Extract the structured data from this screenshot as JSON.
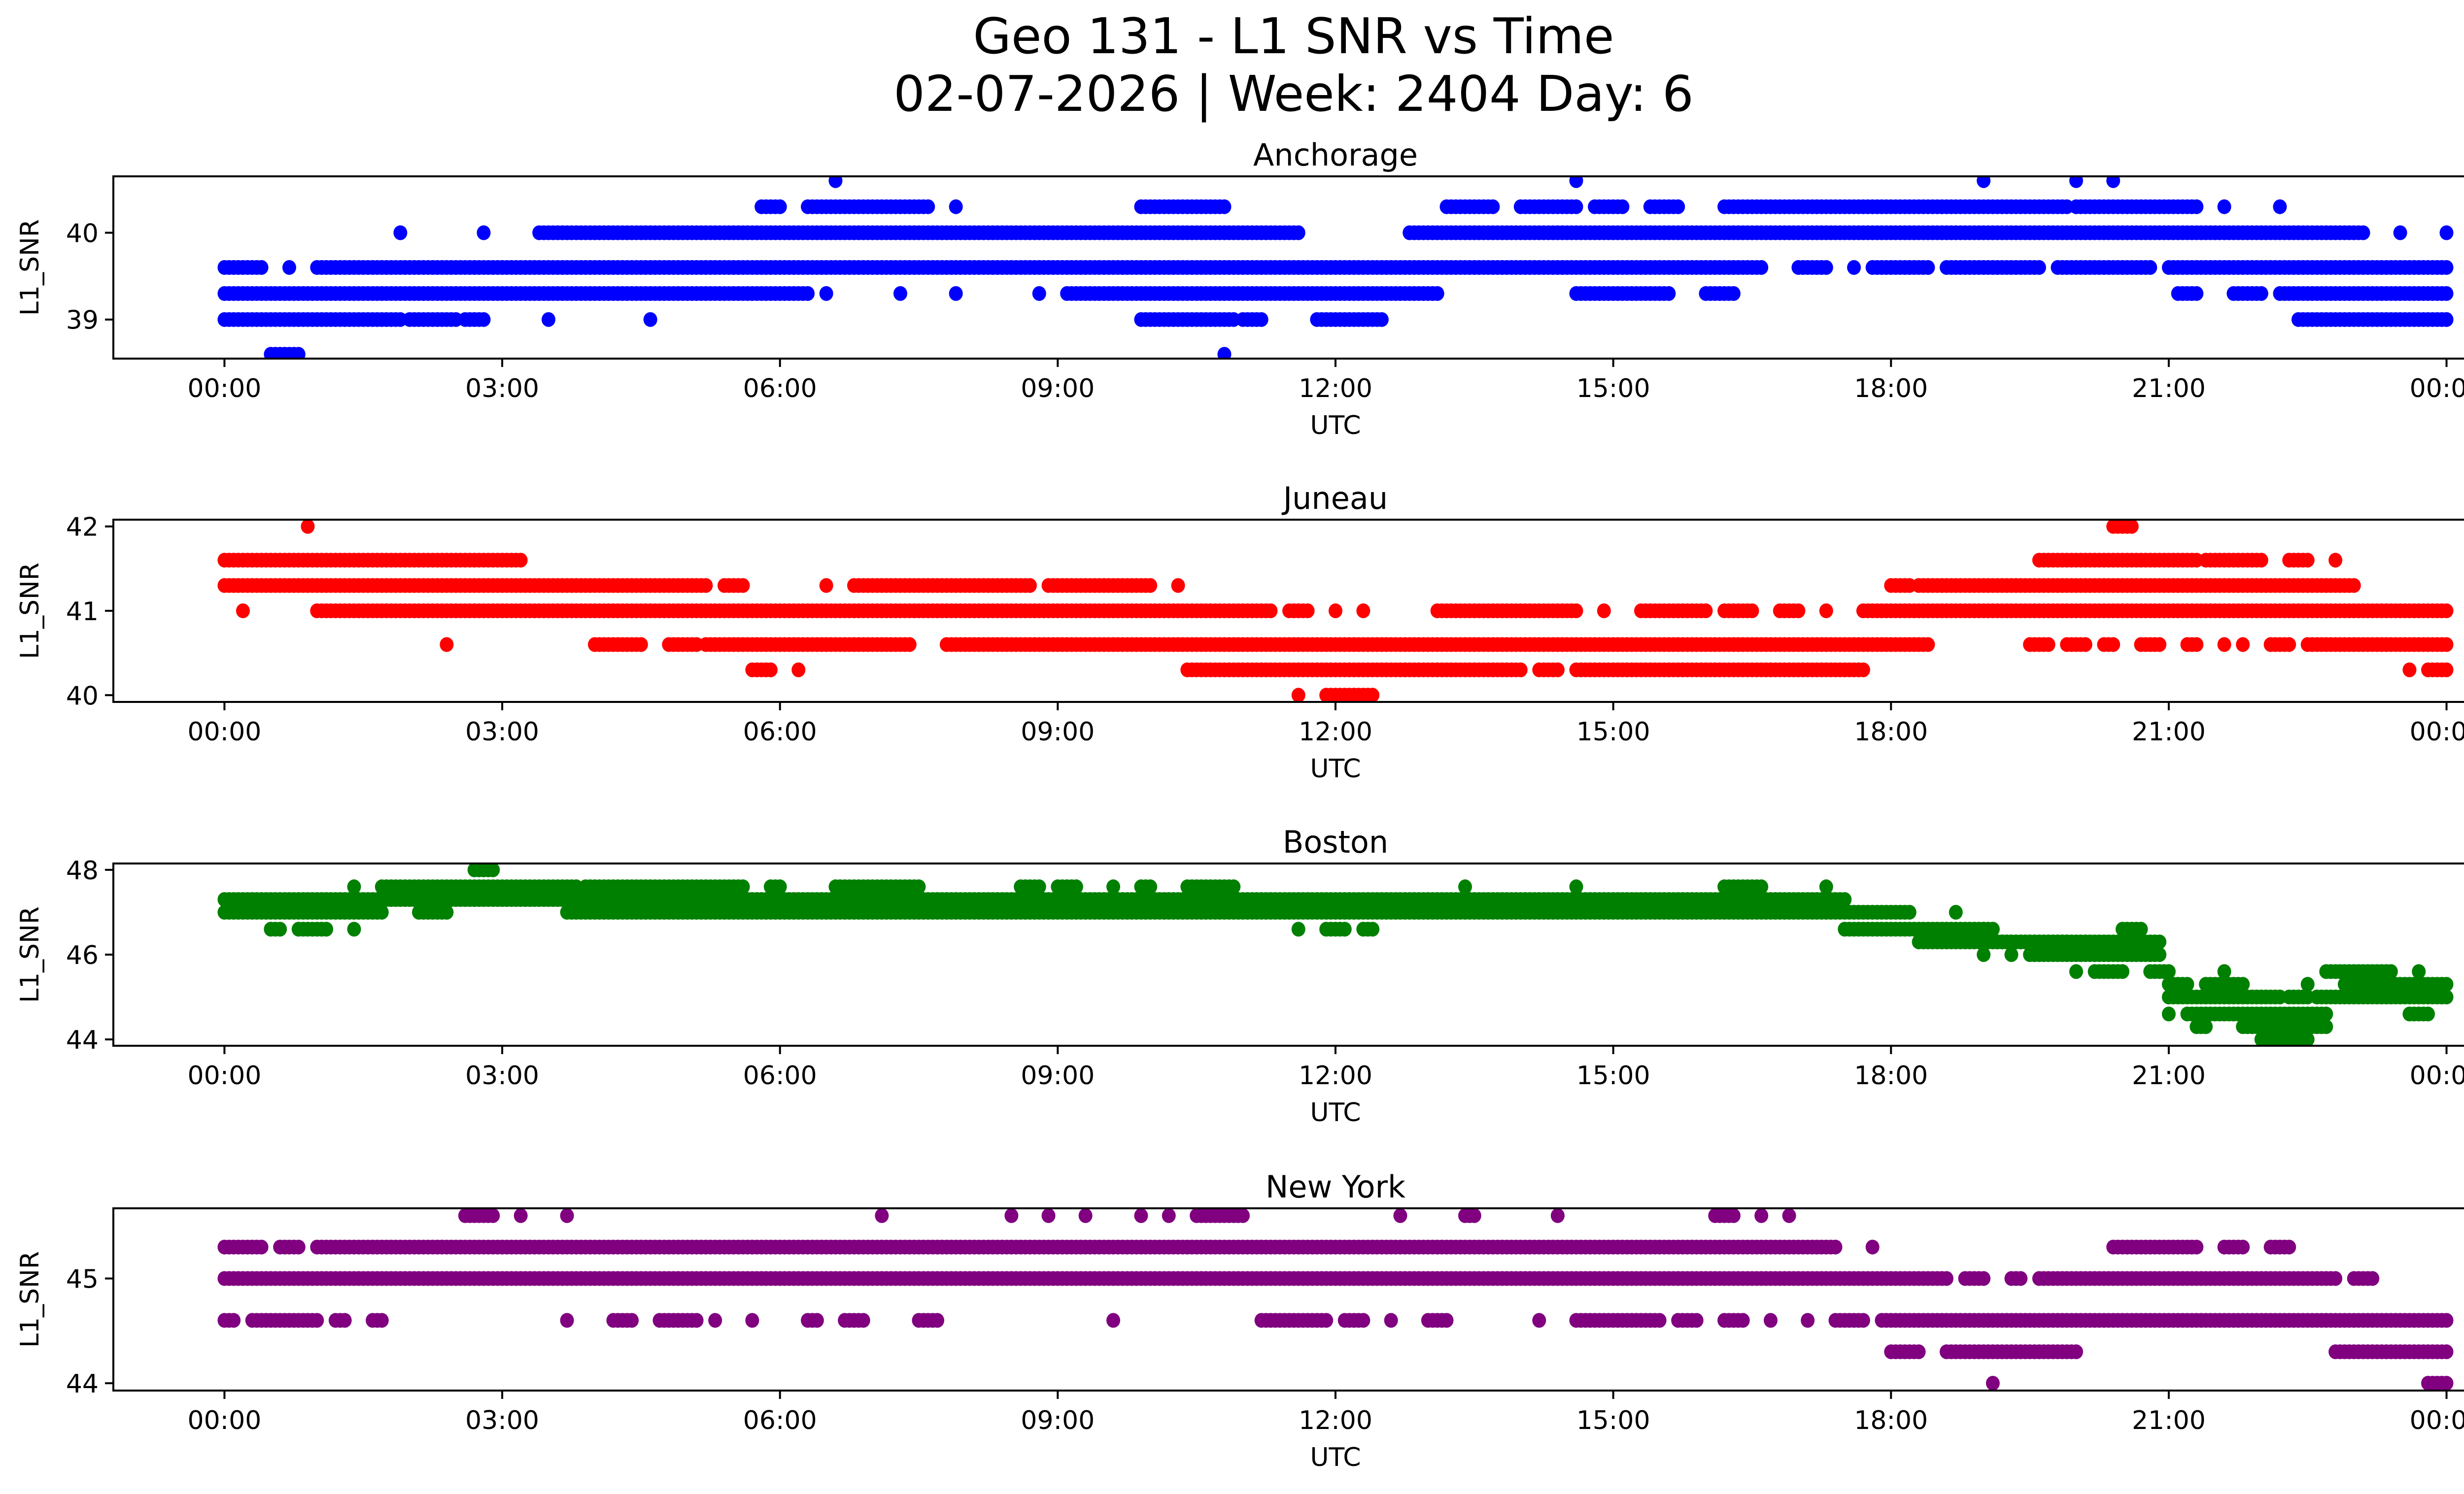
{
  "chart_data": {
    "type": "scatter",
    "title": "Geo 131 - L1 SNR vs Time",
    "subtitle": "02-07-2026 | Week: 2404 Day: 6",
    "x_tick_labels": [
      "00:00",
      "03:00",
      "06:00",
      "09:00",
      "12:00",
      "15:00",
      "18:00",
      "21:00",
      "00:00"
    ],
    "x_tick_hours": [
      0,
      3,
      6,
      9,
      12,
      15,
      18,
      21,
      24
    ],
    "xlim_hours": [
      -1.2,
      25.2
    ],
    "point_step_hours": 0.05,
    "panels": [
      {
        "title": "Anchorage",
        "xlabel": "UTC",
        "ylabel": "L1_SNR",
        "color": "#0000ff",
        "ylim": [
          38.55,
          40.65
        ],
        "yticks": [
          39,
          40
        ],
        "note": "segments: [start_hour, end_hour, snr]",
        "segments": [
          [
            0.0,
            1.9,
            39.0
          ],
          [
            2.0,
            2.5,
            39.0
          ],
          [
            2.6,
            2.8,
            39.0
          ],
          [
            3.5,
            3.5,
            39.0
          ],
          [
            4.6,
            4.6,
            39.0
          ],
          [
            9.9,
            10.9,
            39.0
          ],
          [
            11.0,
            11.2,
            39.0
          ],
          [
            11.8,
            12.5,
            39.0
          ],
          [
            24.0,
            24.0,
            39.0
          ],
          [
            22.4,
            24.0,
            39.0
          ],
          [
            0.0,
            6.3,
            39.3
          ],
          [
            6.5,
            6.5,
            39.3
          ],
          [
            7.3,
            7.3,
            39.3
          ],
          [
            7.9,
            7.9,
            39.3
          ],
          [
            8.8,
            8.8,
            39.3
          ],
          [
            9.1,
            13.1,
            39.3
          ],
          [
            14.6,
            15.6,
            39.3
          ],
          [
            16.0,
            16.3,
            39.3
          ],
          [
            21.1,
            21.3,
            39.3
          ],
          [
            21.7,
            22.0,
            39.3
          ],
          [
            22.2,
            24.0,
            39.3
          ],
          [
            0.0,
            0.4,
            39.6
          ],
          [
            0.7,
            0.7,
            39.6
          ],
          [
            1.0,
            16.6,
            39.6
          ],
          [
            17.0,
            17.3,
            39.6
          ],
          [
            17.6,
            17.6,
            39.6
          ],
          [
            17.8,
            18.4,
            39.6
          ],
          [
            18.6,
            19.6,
            39.6
          ],
          [
            19.8,
            20.8,
            39.6
          ],
          [
            21.0,
            24.0,
            39.6
          ],
          [
            1.9,
            1.9,
            40.0
          ],
          [
            2.8,
            2.8,
            40.0
          ],
          [
            3.4,
            11.6,
            40.0
          ],
          [
            12.8,
            23.1,
            40.0
          ],
          [
            23.5,
            23.5,
            40.0
          ],
          [
            24.0,
            24.0,
            40.0
          ],
          [
            5.8,
            6.0,
            40.3
          ],
          [
            6.3,
            7.6,
            40.3
          ],
          [
            7.9,
            7.9,
            40.3
          ],
          [
            9.9,
            10.8,
            40.3
          ],
          [
            13.2,
            13.7,
            40.3
          ],
          [
            14.0,
            14.6,
            40.3
          ],
          [
            14.8,
            15.1,
            40.3
          ],
          [
            15.4,
            15.7,
            40.3
          ],
          [
            16.2,
            19.9,
            40.3
          ],
          [
            20.0,
            21.3,
            40.3
          ],
          [
            21.6,
            21.6,
            40.3
          ],
          [
            22.2,
            22.2,
            40.3
          ],
          [
            6.6,
            6.6,
            40.6
          ],
          [
            14.6,
            14.6,
            40.6
          ],
          [
            19.0,
            19.0,
            40.6
          ],
          [
            20.0,
            20.0,
            40.6
          ],
          [
            20.4,
            20.4,
            40.6
          ],
          [
            0.5,
            0.8,
            38.6
          ],
          [
            10.8,
            10.8,
            38.6
          ]
        ]
      },
      {
        "title": "Juneau",
        "xlabel": "UTC",
        "ylabel": "L1_SNR",
        "color": "#ff0000",
        "ylim": [
          39.92,
          42.08
        ],
        "yticks": [
          40,
          41,
          42
        ],
        "segments": [
          [
            0.9,
            0.9,
            42.0
          ],
          [
            20.4,
            20.6,
            42.0
          ],
          [
            0.0,
            3.2,
            41.6
          ],
          [
            19.6,
            21.3,
            41.6
          ],
          [
            21.4,
            22.0,
            41.6
          ],
          [
            22.3,
            22.5,
            41.6
          ],
          [
            22.8,
            22.8,
            41.6
          ],
          [
            0.0,
            5.2,
            41.3
          ],
          [
            5.4,
            5.6,
            41.3
          ],
          [
            6.5,
            6.5,
            41.3
          ],
          [
            6.8,
            8.7,
            41.3
          ],
          [
            8.9,
            10.0,
            41.3
          ],
          [
            10.3,
            10.3,
            41.3
          ],
          [
            18.0,
            18.2,
            41.3
          ],
          [
            18.3,
            23.0,
            41.3
          ],
          [
            0.2,
            0.2,
            41.0
          ],
          [
            1.0,
            11.3,
            41.0
          ],
          [
            11.5,
            11.7,
            41.0
          ],
          [
            12.0,
            12.0,
            41.0
          ],
          [
            12.3,
            12.3,
            41.0
          ],
          [
            13.1,
            14.6,
            41.0
          ],
          [
            14.9,
            14.9,
            41.0
          ],
          [
            15.3,
            16.0,
            41.0
          ],
          [
            16.2,
            16.5,
            41.0
          ],
          [
            16.8,
            17.0,
            41.0
          ],
          [
            17.3,
            17.3,
            41.0
          ],
          [
            17.7,
            24.0,
            41.0
          ],
          [
            2.4,
            2.4,
            40.6
          ],
          [
            4.0,
            4.5,
            40.6
          ],
          [
            4.8,
            5.1,
            40.6
          ],
          [
            5.2,
            7.4,
            40.6
          ],
          [
            7.8,
            18.4,
            40.6
          ],
          [
            19.5,
            19.7,
            40.6
          ],
          [
            19.9,
            20.1,
            40.6
          ],
          [
            20.3,
            20.4,
            40.6
          ],
          [
            20.7,
            20.9,
            40.6
          ],
          [
            21.2,
            21.3,
            40.6
          ],
          [
            21.6,
            21.6,
            40.6
          ],
          [
            21.8,
            21.8,
            40.6
          ],
          [
            22.1,
            22.3,
            40.6
          ],
          [
            22.5,
            24.0,
            40.6
          ],
          [
            5.7,
            5.9,
            40.3
          ],
          [
            6.2,
            6.2,
            40.3
          ],
          [
            10.4,
            14.0,
            40.3
          ],
          [
            14.2,
            14.4,
            40.3
          ],
          [
            14.6,
            17.7,
            40.3
          ],
          [
            23.6,
            23.6,
            40.3
          ],
          [
            23.8,
            24.0,
            40.3
          ],
          [
            11.6,
            11.6,
            40.0
          ],
          [
            11.9,
            12.4,
            40.0
          ]
        ]
      },
      {
        "title": "Boston",
        "xlabel": "UTC",
        "ylabel": "L1_SNR",
        "color": "#008000",
        "ylim": [
          43.85,
          48.15
        ],
        "yticks": [
          44,
          46,
          48
        ],
        "segments": [
          [
            2.7,
            2.9,
            48.0
          ],
          [
            1.4,
            1.4,
            47.6
          ],
          [
            1.7,
            3.8,
            47.6
          ],
          [
            3.9,
            5.6,
            47.6
          ],
          [
            5.9,
            6.0,
            47.6
          ],
          [
            6.6,
            7.5,
            47.6
          ],
          [
            8.6,
            8.8,
            47.6
          ],
          [
            9.0,
            9.2,
            47.6
          ],
          [
            9.6,
            9.6,
            47.6
          ],
          [
            9.9,
            10.0,
            47.6
          ],
          [
            10.4,
            10.9,
            47.6
          ],
          [
            13.4,
            13.4,
            47.6
          ],
          [
            14.6,
            14.6,
            47.6
          ],
          [
            16.2,
            16.6,
            47.6
          ],
          [
            17.3,
            17.3,
            47.6
          ],
          [
            0.0,
            17.5,
            47.3
          ],
          [
            0.0,
            1.7,
            47.0
          ],
          [
            2.1,
            2.4,
            47.0
          ],
          [
            3.7,
            18.2,
            47.0
          ],
          [
            18.7,
            18.7,
            47.0
          ],
          [
            0.5,
            0.6,
            46.6
          ],
          [
            0.8,
            1.1,
            46.6
          ],
          [
            1.4,
            1.4,
            46.6
          ],
          [
            11.6,
            11.6,
            46.6
          ],
          [
            11.9,
            12.1,
            46.6
          ],
          [
            12.3,
            12.4,
            46.6
          ],
          [
            17.5,
            19.0,
            46.6
          ],
          [
            19.0,
            19.1,
            46.6
          ],
          [
            20.5,
            20.7,
            46.6
          ],
          [
            18.3,
            19.9,
            46.3
          ],
          [
            19.1,
            20.9,
            46.3
          ],
          [
            19.0,
            19.0,
            46.0
          ],
          [
            19.3,
            19.3,
            46.0
          ],
          [
            19.5,
            20.9,
            46.0
          ],
          [
            20.0,
            20.0,
            45.6
          ],
          [
            20.2,
            20.5,
            45.6
          ],
          [
            20.8,
            21.0,
            45.6
          ],
          [
            21.6,
            21.6,
            45.6
          ],
          [
            22.7,
            23.4,
            45.6
          ],
          [
            23.7,
            23.7,
            45.6
          ],
          [
            21.0,
            21.2,
            45.3
          ],
          [
            21.4,
            21.8,
            45.3
          ],
          [
            22.5,
            22.5,
            45.3
          ],
          [
            22.9,
            24.0,
            45.3
          ],
          [
            21.0,
            22.2,
            45.0
          ],
          [
            22.3,
            22.5,
            45.0
          ],
          [
            22.6,
            24.0,
            45.0
          ],
          [
            21.0,
            21.0,
            44.6
          ],
          [
            21.2,
            22.7,
            44.6
          ],
          [
            23.6,
            23.8,
            44.6
          ],
          [
            21.3,
            21.4,
            44.3
          ],
          [
            21.8,
            22.7,
            44.3
          ],
          [
            22.0,
            22.5,
            44.0
          ]
        ]
      },
      {
        "title": "New York",
        "xlabel": "UTC",
        "ylabel": "L1_SNR",
        "color": "#800080",
        "ylim": [
          43.93,
          45.67
        ],
        "yticks": [
          44,
          45
        ],
        "segments": [
          [
            2.6,
            2.9,
            45.6
          ],
          [
            3.2,
            3.2,
            45.6
          ],
          [
            3.7,
            3.7,
            45.6
          ],
          [
            7.1,
            7.1,
            45.6
          ],
          [
            8.5,
            8.5,
            45.6
          ],
          [
            8.9,
            8.9,
            45.6
          ],
          [
            9.3,
            9.3,
            45.6
          ],
          [
            9.9,
            9.9,
            45.6
          ],
          [
            10.2,
            10.2,
            45.6
          ],
          [
            10.5,
            11.0,
            45.6
          ],
          [
            12.7,
            12.7,
            45.6
          ],
          [
            13.4,
            13.5,
            45.6
          ],
          [
            14.4,
            14.4,
            45.6
          ],
          [
            16.1,
            16.3,
            45.6
          ],
          [
            16.6,
            16.6,
            45.6
          ],
          [
            16.9,
            16.9,
            45.6
          ],
          [
            0.0,
            0.4,
            45.3
          ],
          [
            0.6,
            0.8,
            45.3
          ],
          [
            1.0,
            17.4,
            45.3
          ],
          [
            17.8,
            17.8,
            45.3
          ],
          [
            20.4,
            21.3,
            45.3
          ],
          [
            21.6,
            21.8,
            45.3
          ],
          [
            22.1,
            22.3,
            45.3
          ],
          [
            0.0,
            18.6,
            45.0
          ],
          [
            18.8,
            19.0,
            45.0
          ],
          [
            19.3,
            19.4,
            45.0
          ],
          [
            19.6,
            22.8,
            45.0
          ],
          [
            23.0,
            23.2,
            45.0
          ],
          [
            0.0,
            0.1,
            44.6
          ],
          [
            0.3,
            1.0,
            44.6
          ],
          [
            1.2,
            1.3,
            44.6
          ],
          [
            1.6,
            1.7,
            44.6
          ],
          [
            3.7,
            3.7,
            44.6
          ],
          [
            4.2,
            4.4,
            44.6
          ],
          [
            4.7,
            5.1,
            44.6
          ],
          [
            5.3,
            5.3,
            44.6
          ],
          [
            5.7,
            5.7,
            44.6
          ],
          [
            6.3,
            6.4,
            44.6
          ],
          [
            6.7,
            6.9,
            44.6
          ],
          [
            7.5,
            7.7,
            44.6
          ],
          [
            9.6,
            9.6,
            44.6
          ],
          [
            11.2,
            11.9,
            44.6
          ],
          [
            12.1,
            12.3,
            44.6
          ],
          [
            12.6,
            12.6,
            44.6
          ],
          [
            13.0,
            13.2,
            44.6
          ],
          [
            14.2,
            14.2,
            44.6
          ],
          [
            14.6,
            15.5,
            44.6
          ],
          [
            15.7,
            15.9,
            44.6
          ],
          [
            16.2,
            16.4,
            44.6
          ],
          [
            16.7,
            16.7,
            44.6
          ],
          [
            17.1,
            17.1,
            44.6
          ],
          [
            17.4,
            17.7,
            44.6
          ],
          [
            17.9,
            24.0,
            44.6
          ],
          [
            18.0,
            18.3,
            44.3
          ],
          [
            18.6,
            20.0,
            44.3
          ],
          [
            22.8,
            24.0,
            44.3
          ],
          [
            19.1,
            19.1,
            44.0
          ],
          [
            23.8,
            24.0,
            44.0
          ]
        ]
      }
    ]
  }
}
